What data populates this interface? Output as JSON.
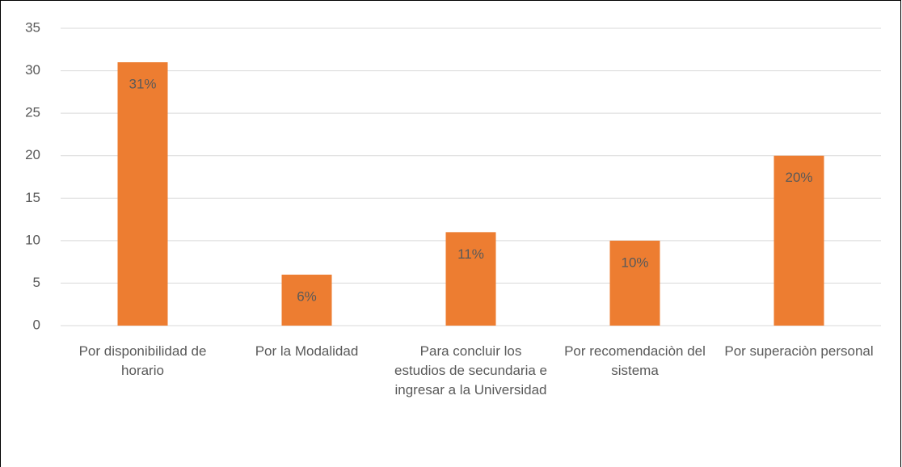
{
  "chart_data": {
    "type": "bar",
    "categories": [
      "Por disponibilidad de horario",
      "Por la Modalidad",
      "Para concluir los estudios de secundaria e ingresar a la Universidad",
      "Por recomendaciòn del sistema",
      "Por superaciòn personal"
    ],
    "values": [
      31,
      6,
      11,
      10,
      20
    ],
    "value_labels": [
      "31%",
      "6%",
      "11%",
      "10%",
      "20%"
    ],
    "color": "#ed7d31",
    "ylim": [
      0,
      35
    ],
    "yticks": [
      0,
      5,
      10,
      15,
      20,
      25,
      30,
      35
    ],
    "grid": true
  }
}
